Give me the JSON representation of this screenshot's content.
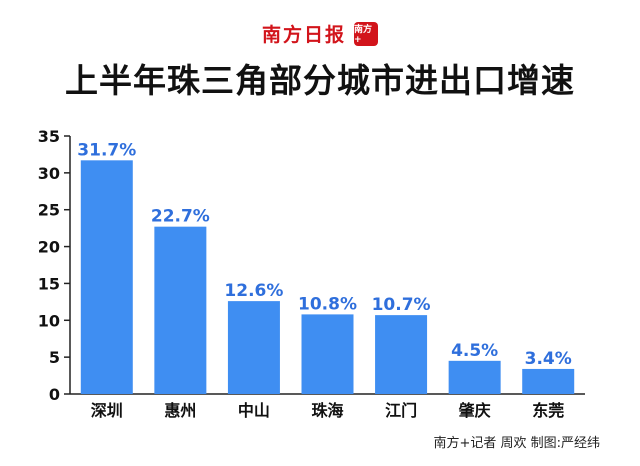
{
  "brand": {
    "name": "南方日报",
    "logo_text": "南方+"
  },
  "chart_data": {
    "type": "bar",
    "title": "上半年珠三角部分城市进出口增速",
    "categories": [
      "深圳",
      "惠州",
      "中山",
      "珠海",
      "江门",
      "肇庆",
      "东莞"
    ],
    "values": [
      31.7,
      22.7,
      12.6,
      10.8,
      10.7,
      4.5,
      3.4
    ],
    "labels": [
      "31.7%",
      "22.7%",
      "12.6%",
      "10.8%",
      "10.7%",
      "4.5%",
      "3.4%"
    ],
    "yticks": [
      "0",
      "5",
      "10",
      "15",
      "20",
      "25",
      "30",
      "35"
    ],
    "ylim": [
      0,
      35
    ],
    "xlabel": "",
    "ylabel": "",
    "bar_color": "#3f8ef2",
    "label_color": "#2f6fdc"
  },
  "credit": "南方+记者 周欢  制图:严经纬"
}
